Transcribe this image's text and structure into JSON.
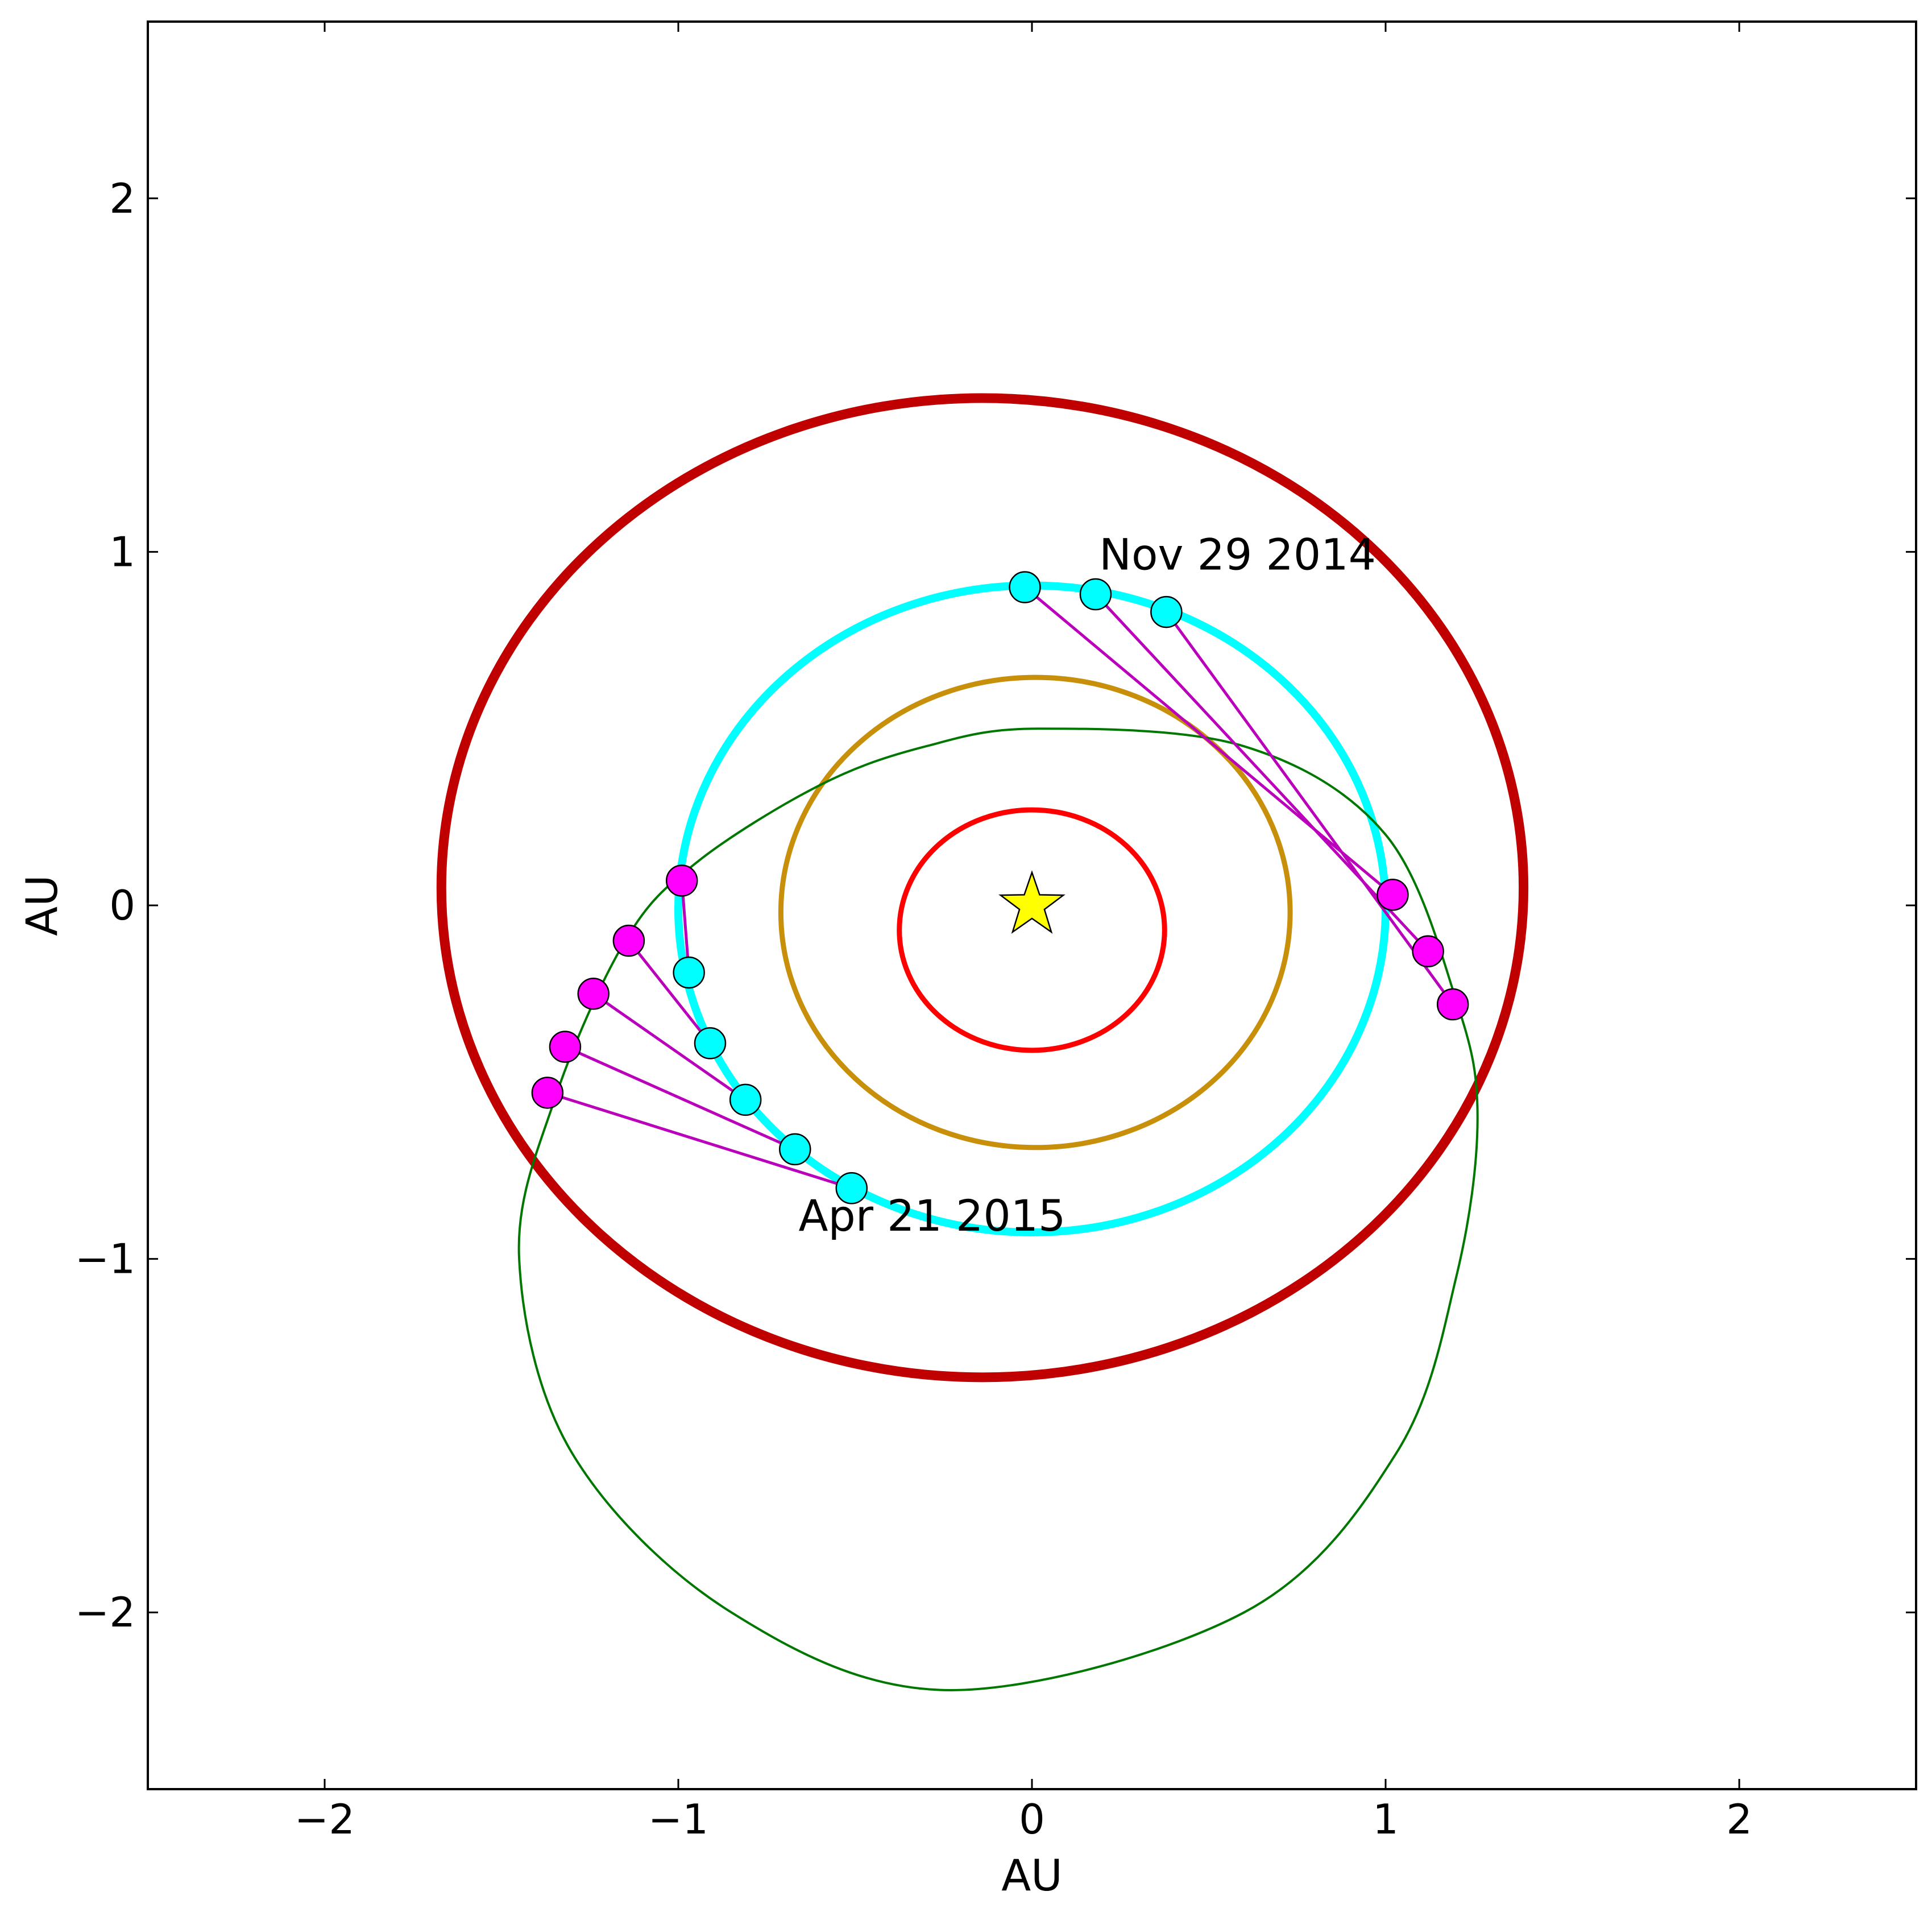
{
  "chart_data": {
    "type": "scatter",
    "title": "",
    "xlabel": "AU",
    "ylabel": "AU",
    "xlim": [
      -2.5,
      2.5
    ],
    "ylim": [
      -2.5,
      2.5
    ],
    "xticks": [
      -2,
      -1,
      0,
      1,
      2
    ],
    "yticks": [
      -2,
      -1,
      0,
      1,
      2
    ],
    "xtick_labels": [
      "−2",
      "−1",
      "0",
      "1",
      "2"
    ],
    "ytick_labels": [
      "−2",
      "−1",
      "0",
      "1",
      "2"
    ],
    "grid": false,
    "legend": "none",
    "sun": {
      "x": 0.0,
      "y": 0.0,
      "color": "#ffff00",
      "icon": "star-icon"
    },
    "orbits": [
      {
        "cx": 0.0,
        "cy": -0.07,
        "rx": 0.375,
        "ry": 0.34,
        "color": "#ff0000",
        "weight": "medium"
      },
      {
        "cx": 0.01,
        "cy": -0.02,
        "rx": 0.72,
        "ry": 0.665,
        "color": "#c8900a",
        "weight": "medium"
      },
      {
        "cx": 0.0,
        "cy": -0.01,
        "rx": 1.0,
        "ry": 0.915,
        "color": "#00ffff",
        "weight": "thick"
      },
      {
        "cx": -0.14,
        "cy": 0.05,
        "rx": 1.53,
        "ry": 1.385,
        "color": "#c00000",
        "weight": "heavy"
      }
    ],
    "comet_orbit": {
      "color": "#007700",
      "points": [
        [
          0.02,
          0.5
        ],
        [
          0.6,
          0.45
        ],
        [
          1.0,
          0.2
        ],
        [
          1.2,
          -0.27
        ],
        [
          1.26,
          -0.6
        ],
        [
          1.2,
          -1.05
        ],
        [
          1.03,
          -1.55
        ],
        [
          0.6,
          -2.0
        ],
        [
          -0.23,
          -2.22
        ],
        [
          -0.85,
          -2.0
        ],
        [
          -1.3,
          -1.55
        ],
        [
          -1.45,
          -1.0
        ],
        [
          -1.35,
          -0.55
        ],
        [
          -1.15,
          -0.1
        ],
        [
          -0.95,
          0.12
        ],
        [
          -0.6,
          0.34
        ],
        [
          -0.3,
          0.45
        ]
      ]
    },
    "lines_of_sight": {
      "color": "#bb00bb",
      "pairs": [
        {
          "earth": [
            -0.02,
            0.9
          ],
          "comet": [
            1.02,
            0.03
          ]
        },
        {
          "earth": [
            0.18,
            0.88
          ],
          "comet": [
            1.12,
            -0.13
          ]
        },
        {
          "earth": [
            0.38,
            0.83
          ],
          "comet": [
            1.19,
            -0.28
          ]
        },
        {
          "earth": [
            -0.97,
            -0.19
          ],
          "comet": [
            -0.99,
            0.07
          ]
        },
        {
          "earth": [
            -0.91,
            -0.39
          ],
          "comet": [
            -1.14,
            -0.1
          ]
        },
        {
          "earth": [
            -0.81,
            -0.55
          ],
          "comet": [
            -1.24,
            -0.25
          ]
        },
        {
          "earth": [
            -0.67,
            -0.69
          ],
          "comet": [
            -1.32,
            -0.4
          ]
        },
        {
          "earth": [
            -0.51,
            -0.8
          ],
          "comet": [
            -1.37,
            -0.53
          ]
        }
      ]
    },
    "series": [
      {
        "color": "#00ffff",
        "points": [
          [
            -0.02,
            0.9
          ],
          [
            0.18,
            0.88
          ],
          [
            0.38,
            0.83
          ],
          [
            -0.97,
            -0.19
          ],
          [
            -0.91,
            -0.39
          ],
          [
            -0.81,
            -0.55
          ],
          [
            -0.67,
            -0.69
          ],
          [
            -0.51,
            -0.8
          ]
        ]
      },
      {
        "color": "#ff00ff",
        "points": [
          [
            1.02,
            0.03
          ],
          [
            1.12,
            -0.13
          ],
          [
            1.19,
            -0.28
          ],
          [
            -0.99,
            0.07
          ],
          [
            -1.14,
            -0.1
          ],
          [
            -1.24,
            -0.25
          ],
          [
            -1.32,
            -0.4
          ],
          [
            -1.37,
            -0.53
          ]
        ]
      }
    ],
    "annotations": [
      {
        "text": "Nov 29 2014",
        "x": 0.19,
        "y": 0.95
      },
      {
        "text": "Apr 21 2015",
        "x": -0.66,
        "y": -0.92
      }
    ]
  }
}
